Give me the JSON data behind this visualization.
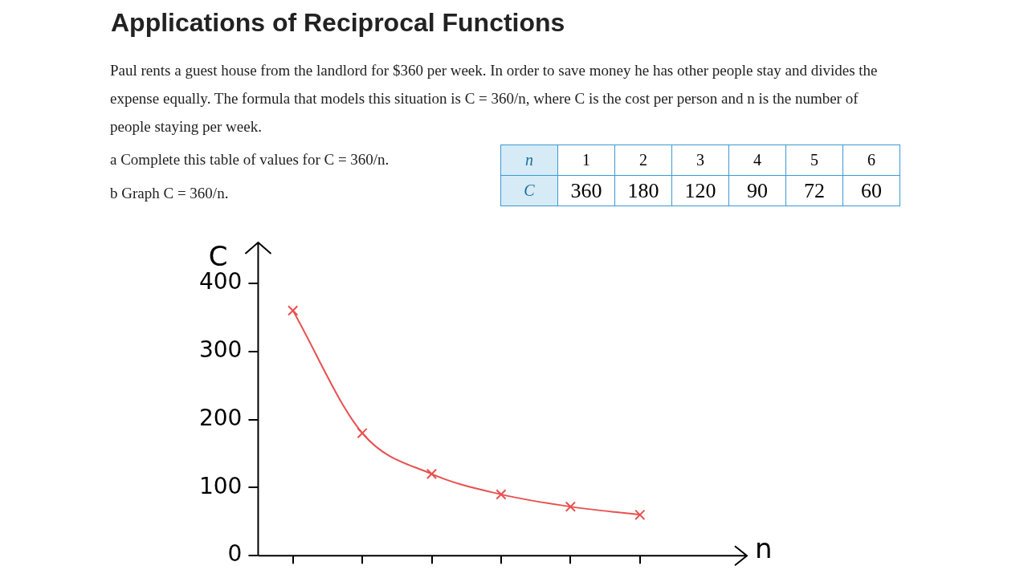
{
  "chart_data": {
    "type": "line",
    "title": "Applications of Reciprocal Functions",
    "annotations": [
      "Paul rents a guest house from the landlord for $360 per week. In order to save money he has other people stay and divides the expense equally. The formula that models this situation is C = 360/n, where C is the cost per person and n is the number of people staying per week.",
      "a  Complete this table of values for C = 360/n.",
      "b  Graph C = 360/n.",
      "n",
      "1",
      "2",
      "3",
      "4",
      "5",
      "6",
      "C",
      "360",
      "180",
      "120",
      "90",
      "72",
      "60"
    ],
    "xlabel": "n",
    "ylabel": "C",
    "categories": [
      null,
      null,
      null,
      null,
      null,
      null
    ],
    "series": [
      {
        "color": "#e8504f",
        "values": [
          360,
          180,
          120,
          90,
          72,
          60
        ]
      }
    ],
    "ylim": [
      0,
      460
    ],
    "yticks": [
      0,
      100,
      200,
      300,
      400
    ],
    "tick_labels": "y",
    "grid": false,
    "legend": false,
    "marker": "cross",
    "line_style": "solid"
  }
}
